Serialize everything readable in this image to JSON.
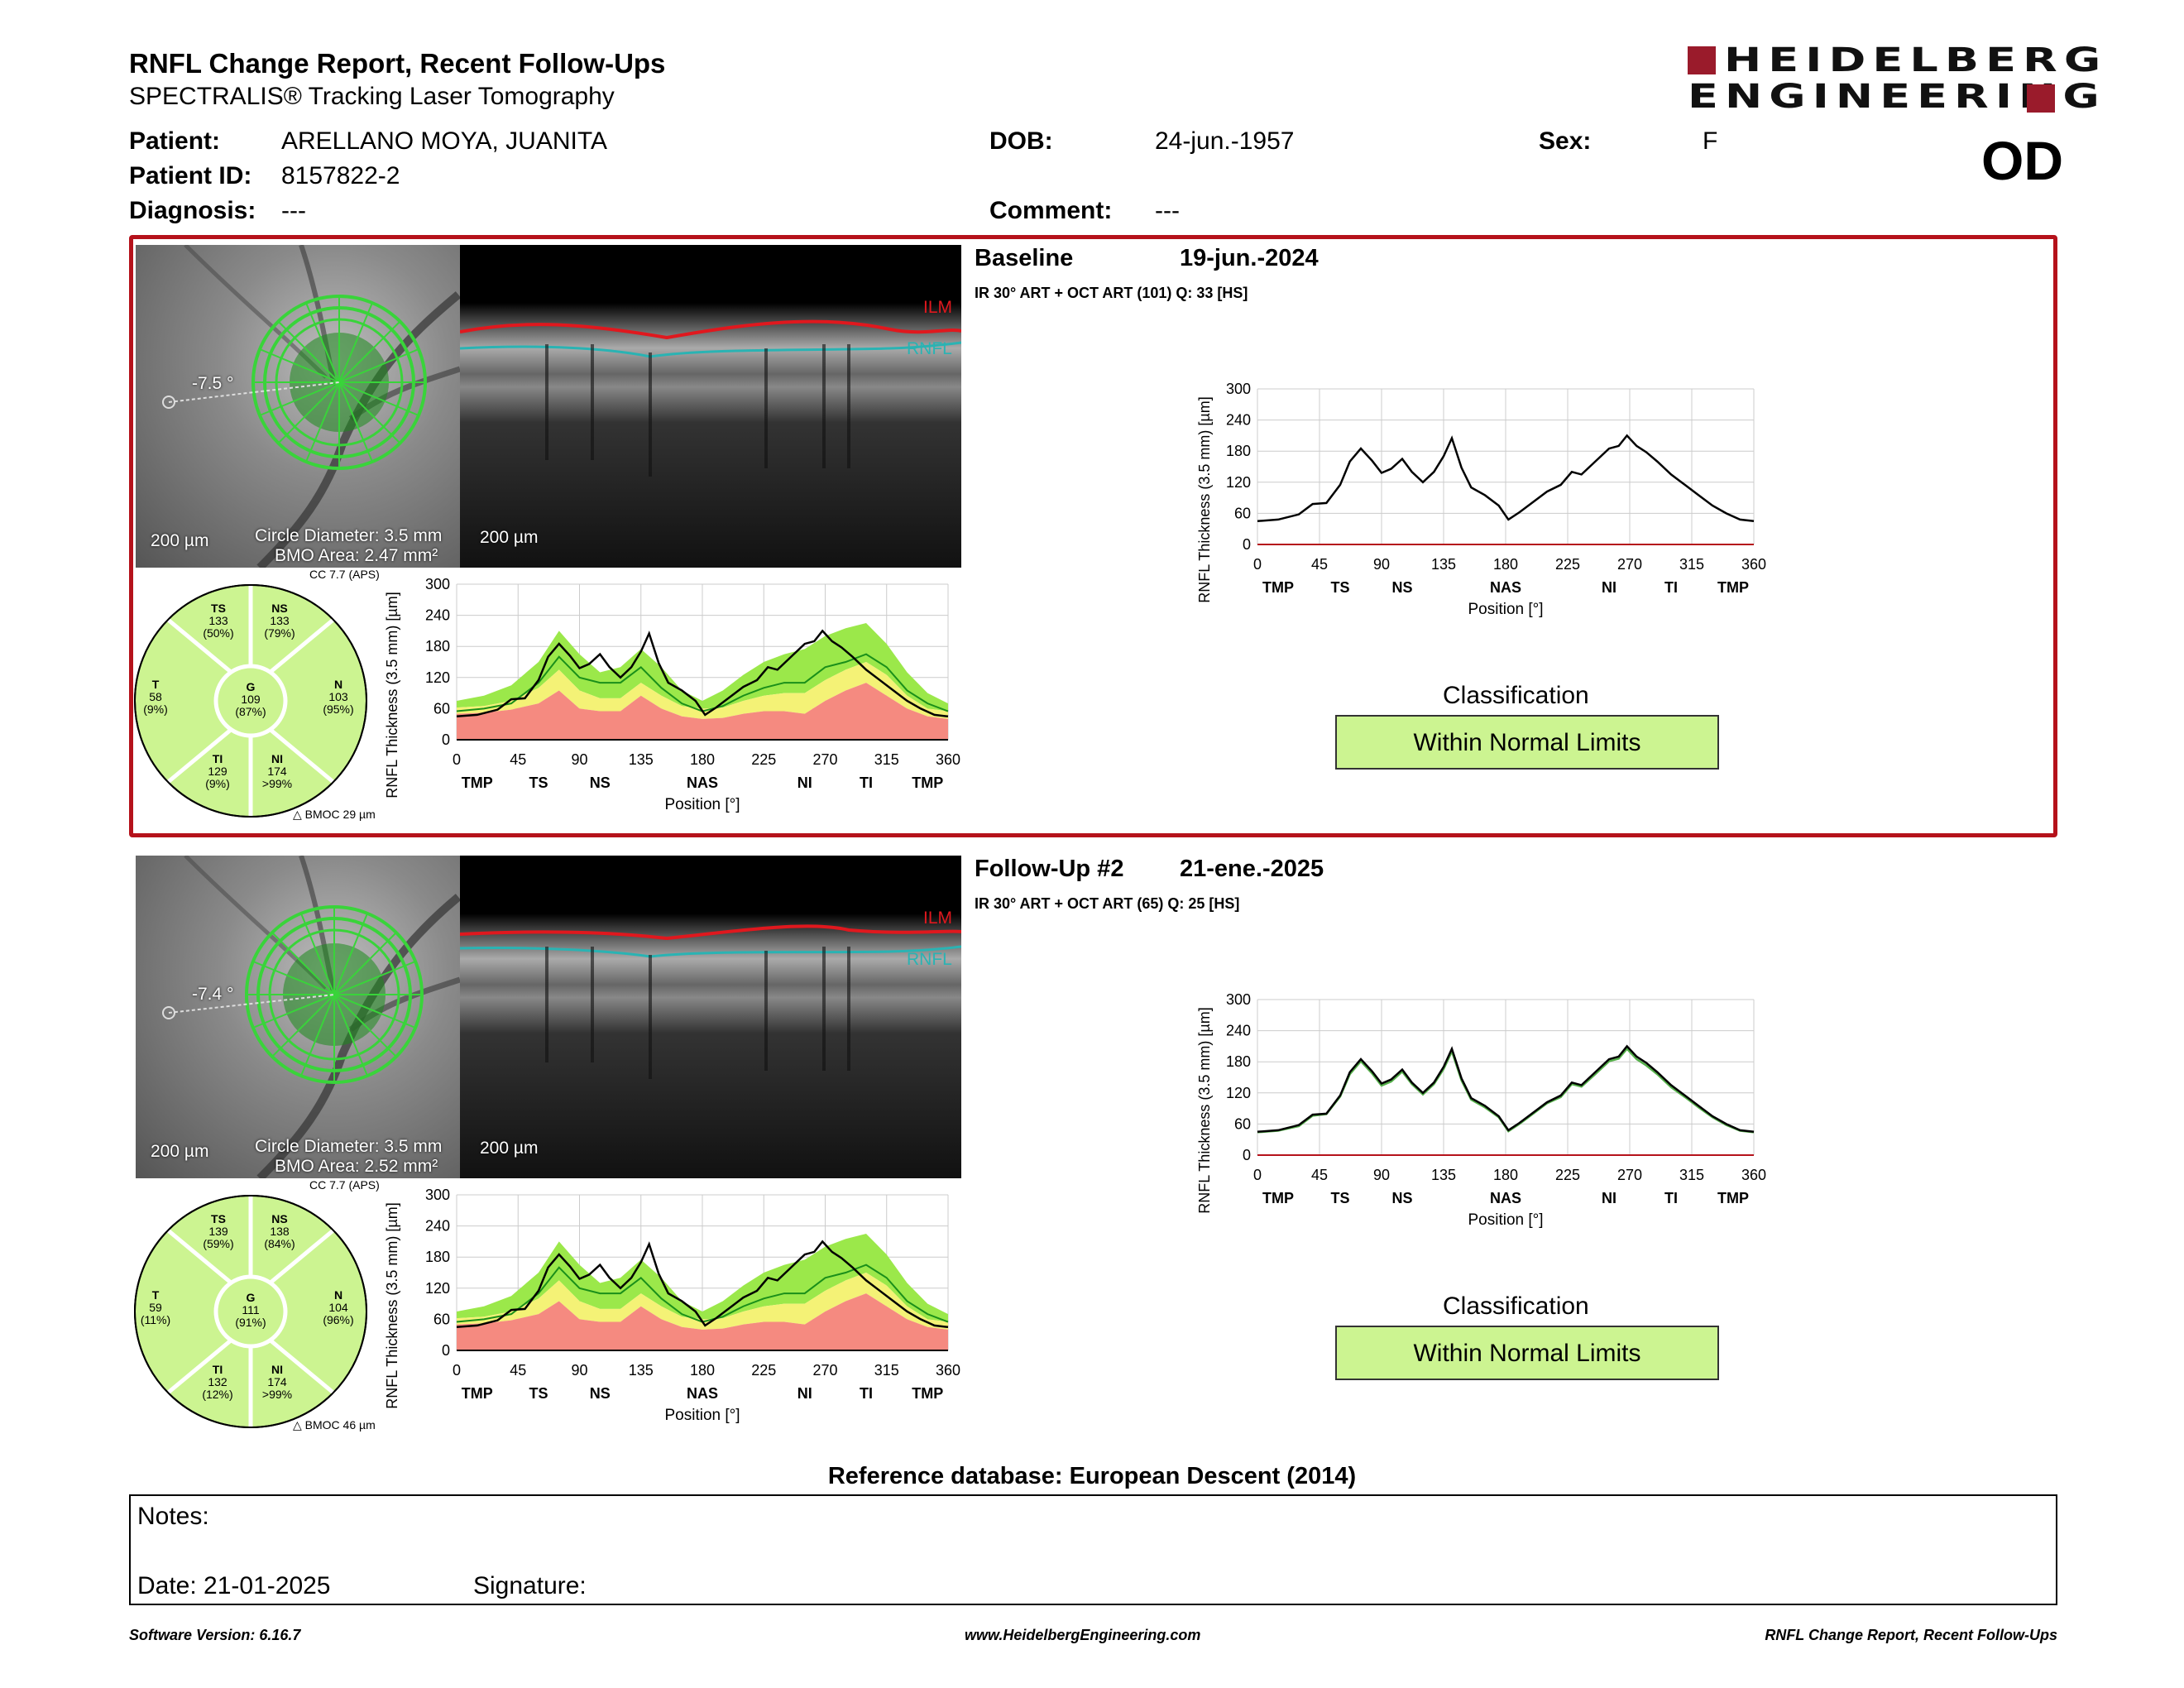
{
  "header": {
    "title": "RNFL Change Report, Recent Follow-Ups",
    "subtitle": "SPECTRALIS® Tracking Laser Tomography",
    "logo_line1": "HEIDELBERG",
    "logo_line2": "ENGINEERING",
    "eye": "OD"
  },
  "patient": {
    "patient_label": "Patient:",
    "patient_name": "ARELLANO MOYA, JUANITA",
    "dob_label": "DOB:",
    "dob": "24-jun.-1957",
    "sex_label": "Sex:",
    "sex": "F",
    "id_label": "Patient ID:",
    "id": "8157822-2",
    "diagnosis_label": "Diagnosis:",
    "diagnosis": "---",
    "comment_label": "Comment:",
    "comment": "---"
  },
  "exams": [
    {
      "name": "Baseline",
      "date": "19-jun.-2024",
      "scan_info": "IR 30° ART + OCT ART (101) Q: 33 [HS]",
      "angle": "-7.5 °",
      "scale_fundus": "200 µm",
      "scale_oct": "200 µm",
      "circle_diameter": "Circle Diameter: 3.5 mm",
      "bmo_area": "BMO Area: 2.47 mm²",
      "cc": "CC 7.7 (APS)",
      "bmoc": "BMOC 29 µm",
      "ilm": "ILM",
      "rnfl": "RNFL",
      "sectors": {
        "TS": [
          "TS",
          "133",
          "(50%)"
        ],
        "NS": [
          "NS",
          "133",
          "(79%)"
        ],
        "T": [
          "T",
          "58",
          "(9%)"
        ],
        "G": [
          "G",
          "109",
          "(87%)"
        ],
        "N": [
          "N",
          "103",
          "(95%)"
        ],
        "TI": [
          "TI",
          "129",
          "(9%)"
        ],
        "NI": [
          "NI",
          "174",
          ">99%"
        ]
      },
      "classification_title": "Classification",
      "classification": "Within Normal Limits"
    },
    {
      "name": "Follow-Up #2",
      "date": "21-ene.-2025",
      "scan_info": "IR 30° ART + OCT ART (65) Q: 25 [HS]",
      "angle": "-7.4 °",
      "scale_fundus": "200 µm",
      "scale_oct": "200 µm",
      "circle_diameter": "Circle Diameter: 3.5 mm",
      "bmo_area": "BMO Area: 2.52 mm²",
      "cc": "CC 7.7 (APS)",
      "bmoc": "BMOC 46 µm",
      "ilm": "ILM",
      "rnfl": "RNFL",
      "sectors": {
        "TS": [
          "TS",
          "139",
          "(59%)"
        ],
        "NS": [
          "NS",
          "138",
          "(84%)"
        ],
        "T": [
          "T",
          "59",
          "(11%)"
        ],
        "G": [
          "G",
          "111",
          "(91%)"
        ],
        "N": [
          "N",
          "104",
          "(96%)"
        ],
        "TI": [
          "TI",
          "132",
          "(12%)"
        ],
        "NI": [
          "NI",
          "174",
          ">99%"
        ]
      },
      "classification_title": "Classification",
      "classification": "Within Normal Limits"
    }
  ],
  "reference_db": "Reference database: European Descent (2014)",
  "notes": {
    "label": "Notes:",
    "date": "Date: 21-01-2025",
    "signature": "Signature:"
  },
  "footer": {
    "left": "Software Version: 6.16.7",
    "center": "www.HeidelbergEngineering.com",
    "right": "RNFL Change Report, Recent Follow-Ups"
  },
  "colors": {
    "red": "#b5121b",
    "normal_green": "#ccf491",
    "band_green": "#9be84a",
    "band_yellow": "#f4f276",
    "band_red": "#f58a80"
  },
  "chart_data": [
    {
      "type": "line",
      "title": "",
      "ylabel": "RNFL Thickness (3.5 mm) [µm]",
      "xlabel": "Position [°]",
      "xlim": [
        0,
        360
      ],
      "ylim": [
        0,
        300
      ],
      "xticks": [
        0,
        45,
        90,
        135,
        180,
        225,
        270,
        315,
        360
      ],
      "yticks": [
        0,
        60,
        120,
        180,
        240,
        300
      ],
      "sector_labels": [
        "TMP",
        "TS",
        "NS",
        "NAS",
        "NI",
        "TI",
        "TMP"
      ],
      "x": [
        0,
        15,
        30,
        40,
        50,
        60,
        67,
        75,
        83,
        90,
        97,
        105,
        112,
        120,
        128,
        135,
        141,
        148,
        155,
        165,
        175,
        182,
        190,
        200,
        210,
        220,
        228,
        235,
        245,
        255,
        262,
        268,
        275,
        282,
        290,
        300,
        310,
        320,
        330,
        340,
        350,
        360
      ],
      "series": [
        {
          "values": [
            45,
            48,
            58,
            78,
            80,
            115,
            160,
            185,
            162,
            138,
            146,
            165,
            140,
            120,
            140,
            170,
            205,
            148,
            110,
            95,
            75,
            48,
            62,
            82,
            102,
            115,
            140,
            135,
            160,
            185,
            190,
            210,
            190,
            178,
            160,
            135,
            115,
            95,
            75,
            60,
            48,
            45
          ]
        }
      ],
      "normative_band": {
        "x": [
          0,
          20,
          40,
          60,
          75,
          90,
          105,
          120,
          135,
          150,
          165,
          180,
          195,
          210,
          225,
          240,
          255,
          270,
          285,
          300,
          315,
          330,
          345,
          360
        ],
        "lower_red": [
          50,
          52,
          58,
          70,
          95,
          60,
          55,
          55,
          85,
          60,
          45,
          40,
          42,
          50,
          55,
          55,
          50,
          75,
          95,
          110,
          85,
          60,
          45,
          40
        ],
        "lower_yellow": [
          62,
          65,
          75,
          100,
          135,
          95,
          80,
          80,
          110,
          85,
          65,
          60,
          62,
          75,
          85,
          90,
          90,
          115,
          135,
          150,
          125,
          85,
          60,
          55
        ],
        "upper_green": [
          75,
          85,
          105,
          150,
          210,
          165,
          130,
          140,
          175,
          140,
          95,
          75,
          95,
          125,
          150,
          165,
          175,
          200,
          215,
          225,
          185,
          130,
          90,
          70
        ],
        "mean": [
          55,
          60,
          70,
          110,
          160,
          120,
          110,
          110,
          140,
          100,
          70,
          55,
          65,
          85,
          100,
          110,
          110,
          140,
          150,
          165,
          140,
          95,
          70,
          55
        ]
      }
    },
    {
      "type": "line",
      "title": "",
      "ylabel": "RNFL Thickness (3.5 mm) [µm]",
      "xlabel": "Position [°]",
      "xlim": [
        0,
        360
      ],
      "ylim": [
        0,
        300
      ],
      "xticks": [
        0,
        45,
        90,
        135,
        180,
        225,
        270,
        315,
        360
      ],
      "yticks": [
        0,
        60,
        120,
        180,
        240,
        300
      ],
      "sector_labels": [
        "TMP",
        "TS",
        "NS",
        "NAS",
        "NI",
        "TI",
        "TMP"
      ],
      "x": [
        0,
        15,
        30,
        40,
        50,
        60,
        67,
        75,
        83,
        90,
        97,
        105,
        112,
        120,
        128,
        135,
        141,
        148,
        155,
        165,
        175,
        182,
        190,
        200,
        210,
        220,
        228,
        235,
        245,
        255,
        262,
        268,
        275,
        282,
        290,
        300,
        310,
        320,
        330,
        340,
        350,
        360
      ],
      "series": [
        {
          "values": [
            45,
            48,
            58,
            78,
            80,
            115,
            160,
            185,
            162,
            138,
            146,
            165,
            140,
            120,
            140,
            170,
            205,
            148,
            110,
            95,
            75,
            48,
            62,
            82,
            102,
            115,
            140,
            135,
            160,
            185,
            190,
            210,
            190,
            178,
            160,
            135,
            115,
            95,
            75,
            60,
            48,
            45
          ]
        }
      ],
      "normative_band": {
        "x": [
          0,
          20,
          40,
          60,
          75,
          90,
          105,
          120,
          135,
          150,
          165,
          180,
          195,
          210,
          225,
          240,
          255,
          270,
          285,
          300,
          315,
          330,
          345,
          360
        ],
        "lower_red": [
          50,
          52,
          58,
          70,
          95,
          60,
          55,
          55,
          85,
          60,
          45,
          40,
          42,
          50,
          55,
          55,
          50,
          75,
          95,
          110,
          85,
          60,
          45,
          40
        ],
        "lower_yellow": [
          62,
          65,
          75,
          100,
          135,
          95,
          80,
          80,
          110,
          85,
          65,
          60,
          62,
          75,
          85,
          90,
          90,
          115,
          135,
          150,
          125,
          85,
          60,
          55
        ],
        "upper_green": [
          75,
          85,
          105,
          150,
          210,
          165,
          130,
          140,
          175,
          140,
          95,
          75,
          95,
          125,
          150,
          165,
          175,
          200,
          215,
          225,
          185,
          130,
          90,
          70
        ],
        "mean": [
          55,
          60,
          70,
          110,
          160,
          120,
          110,
          110,
          140,
          100,
          70,
          55,
          65,
          85,
          100,
          110,
          110,
          140,
          150,
          165,
          140,
          95,
          70,
          55
        ]
      }
    },
    {
      "type": "line",
      "title": "",
      "ylabel": "RNFL Thickness (3.5 mm) [µm]",
      "xlabel": "Position [°]",
      "xlim": [
        0,
        360
      ],
      "ylim": [
        0,
        300
      ],
      "xticks": [
        0,
        45,
        90,
        135,
        180,
        225,
        270,
        315,
        360
      ],
      "yticks": [
        0,
        60,
        120,
        180,
        240,
        300
      ],
      "sector_labels": [
        "TMP",
        "TS",
        "NS",
        "NAS",
        "NI",
        "TI",
        "TMP"
      ],
      "x": [
        0,
        15,
        30,
        40,
        50,
        60,
        67,
        75,
        83,
        90,
        97,
        105,
        112,
        120,
        128,
        135,
        141,
        148,
        155,
        165,
        175,
        182,
        190,
        200,
        210,
        220,
        228,
        235,
        245,
        255,
        262,
        268,
        275,
        282,
        290,
        300,
        310,
        320,
        330,
        340,
        350,
        360
      ],
      "series": [
        {
          "values": [
            45,
            48,
            58,
            78,
            80,
            115,
            160,
            185,
            162,
            138,
            146,
            165,
            140,
            120,
            140,
            170,
            205,
            148,
            110,
            95,
            75,
            48,
            62,
            82,
            102,
            115,
            140,
            135,
            160,
            185,
            190,
            210,
            190,
            178,
            160,
            135,
            115,
            95,
            75,
            60,
            48,
            45
          ]
        }
      ]
    },
    {
      "type": "line",
      "title": "",
      "ylabel": "RNFL Thickness (3.5 mm) [µm]",
      "xlabel": "Position [°]",
      "xlim": [
        0,
        360
      ],
      "ylim": [
        0,
        300
      ],
      "xticks": [
        0,
        45,
        90,
        135,
        180,
        225,
        270,
        315,
        360
      ],
      "yticks": [
        0,
        60,
        120,
        180,
        240,
        300
      ],
      "sector_labels": [
        "TMP",
        "TS",
        "NS",
        "NAS",
        "NI",
        "TI",
        "TMP"
      ],
      "x": [
        0,
        15,
        30,
        40,
        50,
        60,
        67,
        75,
        83,
        90,
        97,
        105,
        112,
        120,
        128,
        135,
        141,
        148,
        155,
        165,
        175,
        182,
        190,
        200,
        210,
        220,
        228,
        235,
        245,
        255,
        262,
        268,
        275,
        282,
        290,
        300,
        310,
        320,
        330,
        340,
        350,
        360
      ],
      "series": [
        {
          "values": [
            45,
            48,
            58,
            78,
            80,
            115,
            160,
            185,
            162,
            138,
            146,
            165,
            140,
            120,
            140,
            170,
            205,
            148,
            110,
            95,
            75,
            48,
            62,
            82,
            102,
            115,
            140,
            135,
            160,
            185,
            190,
            210,
            190,
            178,
            160,
            135,
            115,
            95,
            75,
            60,
            48,
            45
          ]
        },
        {
          "values": [
            44,
            47,
            56,
            76,
            79,
            113,
            156,
            181,
            158,
            134,
            142,
            161,
            137,
            117,
            137,
            166,
            200,
            144,
            107,
            92,
            73,
            46,
            60,
            80,
            100,
            112,
            137,
            132,
            156,
            181,
            186,
            205,
            185,
            173,
            156,
            131,
            112,
            92,
            73,
            58,
            47,
            44
          ]
        }
      ]
    }
  ]
}
